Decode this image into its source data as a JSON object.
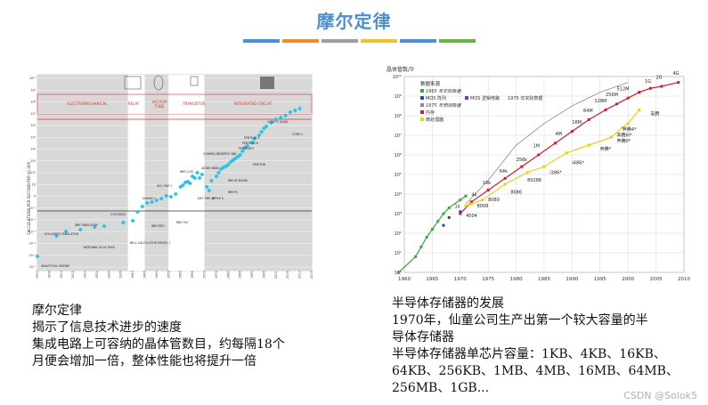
{
  "title": "摩尔定律",
  "stripe_colors": [
    "#4a90d6",
    "#f28c28",
    "#9e9e9e",
    "#f2c12e",
    "#4a90d6",
    "#6cb33f"
  ],
  "left_chart": {
    "ylabel": "CALCULATIONS PER SECOND PER $1,000",
    "y_ticks": [
      "10¹⁰",
      "10⁹",
      "10⁸",
      "10⁷",
      "10⁶",
      "10⁵",
      "10⁴",
      "10³",
      "10²",
      "10",
      "0",
      "10⁻¹",
      "10⁻²",
      "10⁻³",
      "10⁻⁴",
      "10⁻⁵",
      "10⁻⁶"
    ],
    "x_ticks": [
      "1900",
      "1905",
      "1910",
      "1915",
      "1920",
      "1925",
      "1930",
      "1935",
      "1940",
      "1945",
      "1950",
      "1955",
      "1960",
      "1965",
      "1970",
      "1975",
      "1980",
      "1985",
      "1990",
      "1995",
      "2001",
      "2005",
      "2010",
      "2015"
    ],
    "eras": [
      "ELECTROMECHANICAL",
      "RELAY",
      "VACUUM TUBE",
      "TRANSISTOR",
      "INTEGRATED CIRCUIT"
    ],
    "labels": [
      "HOLLERITH TABULATOR",
      "IBM TABULATOR",
      "NATIONAL ELLIS 3000",
      "ANALYTICAL ENGINE",
      "COLOSSUS",
      "BELL CALCULATOR MODEL 1",
      "UNIVAC I",
      "IBM SSEC",
      "IBM 704",
      "DEC PDP-1",
      "IBM 1130",
      "DEC PDP-10",
      "ALTAIR 8800",
      "APPLE II",
      "IBM PC",
      "COMPAQ DESKPRO 386",
      "IBM AT-80286",
      "PENTIUM",
      "PENTIUM 4",
      "PENTIUM III",
      "PENTIUM II",
      "CORE I7 QUAD",
      "CORE 2"
    ],
    "accent": "#e03030",
    "point_color": "#27c4e6"
  },
  "right_chart": {
    "title": "晶体管数/Tr",
    "legend_title": "数据来源",
    "legend": [
      "1965 年实际数据",
      "MOS 阵列",
      "MOS 逻辑电路",
      "1975 年实际数据",
      "1975 年预测数据",
      "内存",
      "微处理器"
    ],
    "y_ticks": [
      "10¹⁰",
      "10⁹",
      "10⁸",
      "10⁷",
      "10⁶",
      "10⁵",
      "10⁴",
      "10³",
      "10²",
      "10¹",
      "10⁰"
    ],
    "x_ticks": [
      "1960",
      "1965",
      "1970",
      "1975",
      "1980",
      "1985",
      "1990",
      "1995",
      "2000",
      "2005",
      "2010"
    ],
    "memory_labels": [
      "1k",
      "4k",
      "16k",
      "64k",
      "256k",
      "1M",
      "4M",
      "16M",
      "64M",
      "128M",
      "256M",
      "512M",
      "1G",
      "2G",
      "4G"
    ],
    "cpu_labels": [
      "4004",
      "8008",
      "8080",
      "8086",
      "80286",
      "i386*",
      "i486*",
      "奔腾*",
      "奔腾II*",
      "奔腾III*",
      "奔腾4*",
      "安腾"
    ],
    "colors": {
      "green": "#3aa83a",
      "red": "#cc1f2b",
      "yellow": "#e8d21c",
      "blue": "#2e46a8",
      "purple": "#7a3aa0",
      "gray": "#8a8a8a"
    }
  },
  "left_text": {
    "line1": "摩尔定律",
    "line2": "揭示了信息技术进步的速度",
    "line3": "集成电路上可容纳的晶体管数目，约每隔18个",
    "line4": "月便会增加一倍，整体性能也将提升一倍"
  },
  "right_text": {
    "line1": "半导体存储器的发展",
    "line2": "1970年，仙童公司生产出第一个较大容量的半",
    "line3": "导体存储器",
    "line4": "半导体存储器单芯片容量：1KB、4KB、16KB、",
    "line5": "64KB、256KB、1MB、4MB、16MB、64MB、",
    "line6": "256MB、1GB..."
  },
  "watermark": "CSDN @Solok5"
}
